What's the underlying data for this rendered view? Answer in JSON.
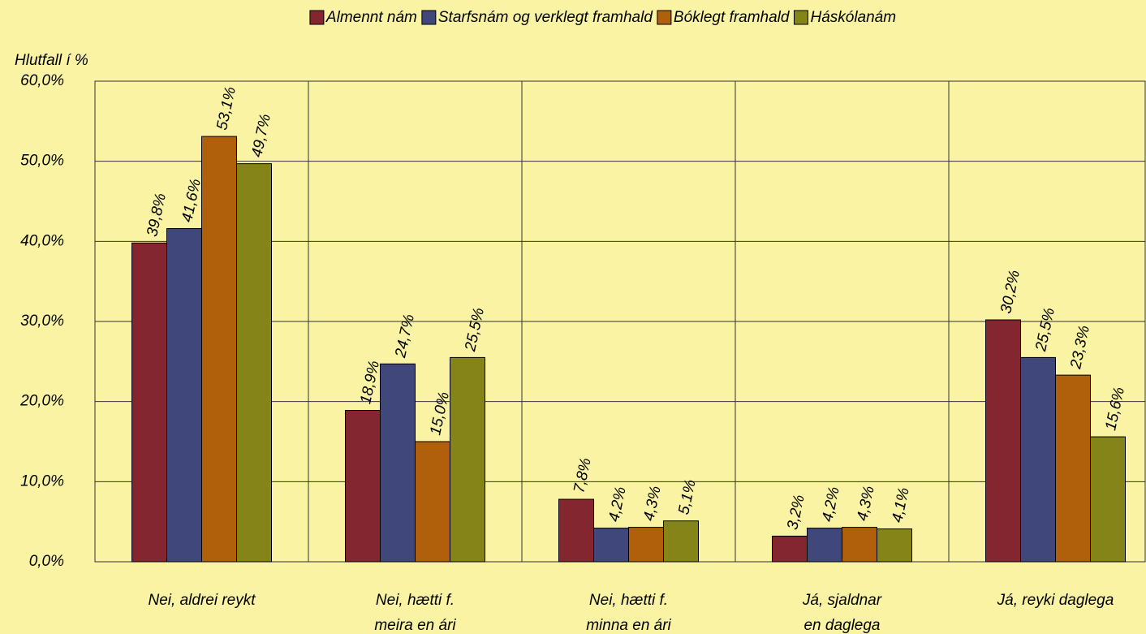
{
  "chart_data": {
    "type": "bar",
    "y_label": "Hlutfall í %",
    "categories": [
      [
        "Nei, aldrei reykt"
      ],
      [
        "Nei, hætti f.",
        "meira en ári"
      ],
      [
        "Nei, hætti f.",
        "minna en ári"
      ],
      [
        "Já, sjaldnar",
        "en daglega"
      ],
      [
        "Já, reyki daglega"
      ]
    ],
    "series": [
      {
        "name": "Almennt nám",
        "color": "#842630",
        "values": [
          39.8,
          18.9,
          7.8,
          3.2,
          30.2
        ],
        "value_labels": [
          "39,8%",
          "18,9%",
          "7,8%",
          "3,2%",
          "30,2%"
        ]
      },
      {
        "name": "Starfsnám og verklegt framhald",
        "color": "#3f477b",
        "values": [
          41.6,
          24.7,
          4.2,
          4.2,
          25.5
        ],
        "value_labels": [
          "41,6%",
          "24,7%",
          "4,2%",
          "4,2%",
          "25,5%"
        ]
      },
      {
        "name": "Bóklegt framhald",
        "color": "#b0600a",
        "values": [
          53.1,
          15.0,
          4.3,
          4.3,
          23.3
        ],
        "value_labels": [
          "53,1%",
          "15,0%",
          "4,3%",
          "4,3%",
          "23,3%"
        ]
      },
      {
        "name": "Háskólanám",
        "color": "#858419",
        "values": [
          49.7,
          25.5,
          5.1,
          4.1,
          15.6
        ],
        "value_labels": [
          "49,7%",
          "25,5%",
          "5,1%",
          "4,1%",
          "15,6%"
        ]
      }
    ],
    "ylim": [
      0,
      60
    ],
    "yticks": [
      {
        "value": 0,
        "label": "0,0%"
      },
      {
        "value": 10,
        "label": "10,0%"
      },
      {
        "value": 20,
        "label": "20,0%"
      },
      {
        "value": 30,
        "label": "30,0%"
      },
      {
        "value": 40,
        "label": "40,0%"
      },
      {
        "value": 50,
        "label": "50,0%"
      },
      {
        "value": 60,
        "label": "60,0%"
      }
    ],
    "grid": true,
    "legend": "top"
  }
}
